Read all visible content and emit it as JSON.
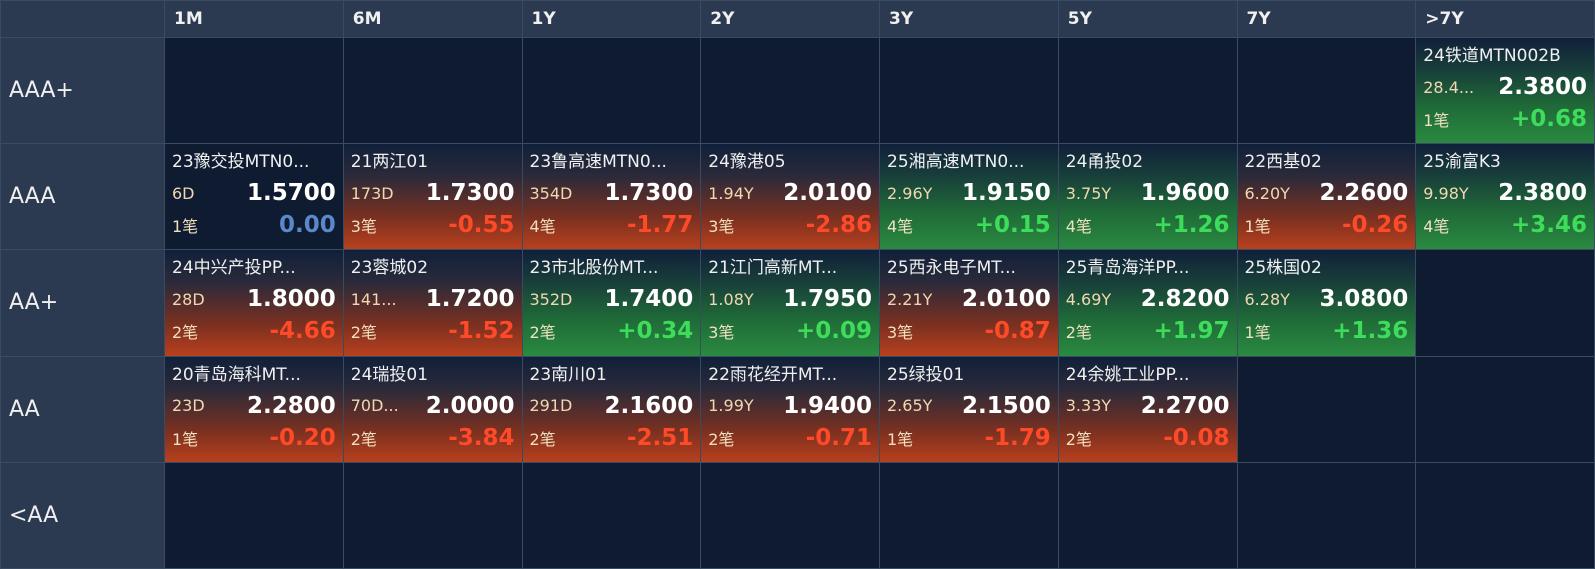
{
  "columns": [
    "1M",
    "6M",
    "1Y",
    "2Y",
    "3Y",
    "5Y",
    "7Y",
    ">7Y"
  ],
  "rows": [
    {
      "label": "AAA+",
      "cells": [
        null,
        null,
        null,
        null,
        null,
        null,
        null,
        {
          "name": "24铁道MTN002B",
          "term": "28.4...",
          "price": "2.3800",
          "count": "1笔",
          "change": "+0.68",
          "dir": "pos"
        }
      ]
    },
    {
      "label": "AAA",
      "cells": [
        {
          "name": "23豫交投MTN0...",
          "term": "6D",
          "price": "1.5700",
          "count": "1笔",
          "change": "0.00",
          "dir": "zero"
        },
        {
          "name": "21两江01",
          "term": "173D",
          "price": "1.7300",
          "count": "3笔",
          "change": "-0.55",
          "dir": "neg"
        },
        {
          "name": "23鲁高速MTN0...",
          "term": "354D",
          "price": "1.7300",
          "count": "4笔",
          "change": "-1.77",
          "dir": "neg"
        },
        {
          "name": "24豫港05",
          "term": "1.94Y",
          "price": "2.0100",
          "count": "3笔",
          "change": "-2.86",
          "dir": "neg"
        },
        {
          "name": "25湘高速MTN0...",
          "term": "2.96Y",
          "price": "1.9150",
          "count": "4笔",
          "change": "+0.15",
          "dir": "pos"
        },
        {
          "name": "24甬投02",
          "term": "3.75Y",
          "price": "1.9600",
          "count": "4笔",
          "change": "+1.26",
          "dir": "pos"
        },
        {
          "name": "22西基02",
          "term": "6.20Y",
          "price": "2.2600",
          "count": "1笔",
          "change": "-0.26",
          "dir": "neg"
        },
        {
          "name": "25渝富K3",
          "term": "9.98Y",
          "price": "2.3800",
          "count": "4笔",
          "change": "+3.46",
          "dir": "pos"
        }
      ]
    },
    {
      "label": "AA+",
      "cells": [
        {
          "name": "24中兴产投PP...",
          "term": "28D",
          "price": "1.8000",
          "count": "2笔",
          "change": "-4.66",
          "dir": "neg"
        },
        {
          "name": "23蓉城02",
          "term": "141...",
          "price": "1.7200",
          "count": "2笔",
          "change": "-1.52",
          "dir": "neg"
        },
        {
          "name": "23市北股份MT...",
          "term": "352D",
          "price": "1.7400",
          "count": "2笔",
          "change": "+0.34",
          "dir": "pos"
        },
        {
          "name": "21江门高新MT...",
          "term": "1.08Y",
          "price": "1.7950",
          "count": "3笔",
          "change": "+0.09",
          "dir": "pos"
        },
        {
          "name": "25西永电子MT...",
          "term": "2.21Y",
          "price": "2.0100",
          "count": "3笔",
          "change": "-0.87",
          "dir": "neg"
        },
        {
          "name": "25青岛海洋PP...",
          "term": "4.69Y",
          "price": "2.8200",
          "count": "2笔",
          "change": "+1.97",
          "dir": "pos"
        },
        {
          "name": "25株国02",
          "term": "6.28Y",
          "price": "3.0800",
          "count": "1笔",
          "change": "+1.36",
          "dir": "pos"
        },
        null
      ]
    },
    {
      "label": "AA",
      "cells": [
        {
          "name": "20青岛海科MT...",
          "term": "23D",
          "price": "2.2800",
          "count": "1笔",
          "change": "-0.20",
          "dir": "neg"
        },
        {
          "name": "24瑞投01",
          "term": "70D...",
          "price": "2.0000",
          "count": "2笔",
          "change": "-3.84",
          "dir": "neg"
        },
        {
          "name": "23南川01",
          "term": "291D",
          "price": "2.1600",
          "count": "2笔",
          "change": "-2.51",
          "dir": "neg"
        },
        {
          "name": "22雨花经开MT...",
          "term": "1.99Y",
          "price": "1.9400",
          "count": "2笔",
          "change": "-0.71",
          "dir": "neg"
        },
        {
          "name": "25绿投01",
          "term": "2.65Y",
          "price": "2.1500",
          "count": "1笔",
          "change": "-1.79",
          "dir": "neg"
        },
        {
          "name": "24余姚工业PP...",
          "term": "3.33Y",
          "price": "2.2700",
          "count": "2笔",
          "change": "-0.08",
          "dir": "neg"
        },
        null,
        null
      ]
    },
    {
      "label": "<AA",
      "cells": [
        null,
        null,
        null,
        null,
        null,
        null,
        null,
        null
      ]
    }
  ]
}
